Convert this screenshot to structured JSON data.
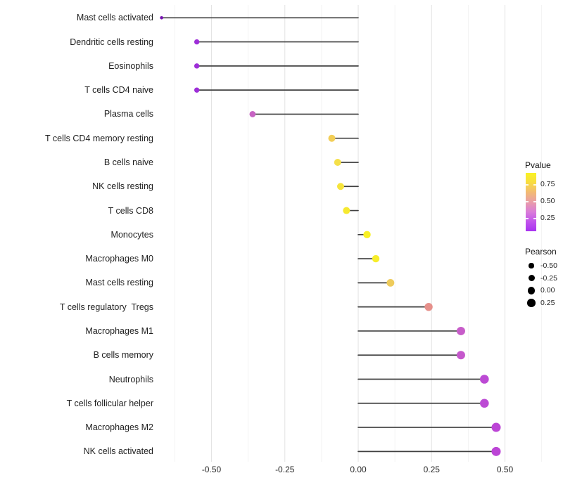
{
  "figure": {
    "background": "#FFFFFF"
  },
  "chart_data": {
    "type": "scatter",
    "variant": "lollipop",
    "orientation": "horizontal",
    "title": "",
    "xlabel": "",
    "ylabel": "",
    "x_axis": {
      "min": -0.72,
      "max": 0.68,
      "major_ticks": [
        -0.5,
        -0.25,
        0.0,
        0.25,
        0.5
      ],
      "tick_labels": [
        "-0.50",
        "-0.25",
        "0.00",
        "0.25",
        "0.50"
      ],
      "minor_ticks": [
        -0.625,
        -0.375,
        -0.125,
        0.125,
        0.375,
        0.625
      ],
      "grid": true
    },
    "stem": {
      "color": "#404040",
      "width": 1.7,
      "baseline_x": 0.0
    },
    "grid_colors": {
      "major": "#E4E4E4",
      "minor": "#F1F1F1"
    },
    "points": [
      {
        "label": "Mast cells activated",
        "pearson": -0.67,
        "pvalue": 0.001,
        "color": "#7612B0",
        "radius": 2.3
      },
      {
        "label": "Dendritic cells resting",
        "pearson": -0.55,
        "pvalue": 0.05,
        "color": "#9E2FD8",
        "radius": 3.7
      },
      {
        "label": "Eosinophils",
        "pearson": -0.55,
        "pvalue": 0.05,
        "color": "#9E2FD8",
        "radius": 3.7
      },
      {
        "label": "T cells CD4 naive",
        "pearson": -0.55,
        "pvalue": 0.05,
        "color": "#9E2FD8",
        "radius": 3.7
      },
      {
        "label": "Plasma cells",
        "pearson": -0.36,
        "pvalue": 0.3,
        "color": "#C763C3",
        "radius": 4.4
      },
      {
        "label": "T cells CD4 memory resting",
        "pearson": -0.09,
        "pvalue": 0.78,
        "color": "#F2CE57",
        "radius": 5.0
      },
      {
        "label": "B cells naive",
        "pearson": -0.07,
        "pvalue": 0.85,
        "color": "#F5E049",
        "radius": 5.0
      },
      {
        "label": "NK cells resting",
        "pearson": -0.06,
        "pvalue": 0.88,
        "color": "#F6E43C",
        "radius": 5.0
      },
      {
        "label": "T cells CD8",
        "pearson": -0.04,
        "pvalue": 0.9,
        "color": "#F6E930",
        "radius": 5.0
      },
      {
        "label": "Monocytes",
        "pearson": 0.03,
        "pvalue": 0.97,
        "color": "#F8F024",
        "radius": 5.2
      },
      {
        "label": "Macrophages M0",
        "pearson": 0.06,
        "pvalue": 0.93,
        "color": "#F7ED2A",
        "radius": 5.2
      },
      {
        "label": "Mast cells resting",
        "pearson": 0.11,
        "pvalue": 0.72,
        "color": "#EECB5B",
        "radius": 5.4
      },
      {
        "label": "T cells regulatory  Tregs",
        "pearson": 0.24,
        "pvalue": 0.55,
        "color": "#E6908B",
        "radius": 5.7
      },
      {
        "label": "Macrophages M1",
        "pearson": 0.35,
        "pvalue": 0.3,
        "color": "#C75CC9",
        "radius": 6.0
      },
      {
        "label": "B cells memory",
        "pearson": 0.35,
        "pvalue": 0.29,
        "color": "#C558CC",
        "radius": 6.0
      },
      {
        "label": "Neutrophils",
        "pearson": 0.43,
        "pvalue": 0.18,
        "color": "#BC4AD4",
        "radius": 6.3
      },
      {
        "label": "T cells follicular helper",
        "pearson": 0.43,
        "pvalue": 0.18,
        "color": "#BC4AD4",
        "radius": 6.3
      },
      {
        "label": "Macrophages M2",
        "pearson": 0.47,
        "pvalue": 0.16,
        "color": "#BC45D6",
        "radius": 6.5
      },
      {
        "label": "NK cells activated",
        "pearson": 0.47,
        "pvalue": 0.16,
        "color": "#BC45D6",
        "radius": 6.5
      }
    ],
    "legends": {
      "pvalue": {
        "title": "Pvalue",
        "tick_labels": [
          "0.75",
          "0.50",
          "0.25"
        ],
        "gradient_top_to_bottom": [
          "#F9F323",
          "#F8DC41",
          "#F2BA74",
          "#E99DA8",
          "#DA7DD9",
          "#C155EC",
          "#A832F0"
        ]
      },
      "pearson": {
        "title": "Pearson",
        "dot_color": "#000000",
        "entries": [
          {
            "label": "-0.50",
            "radius": 3.6
          },
          {
            "label": "-0.25",
            "radius": 4.5
          },
          {
            "label": "0.00",
            "radius": 5.3
          },
          {
            "label": "0.25",
            "radius": 5.8
          }
        ]
      }
    }
  }
}
